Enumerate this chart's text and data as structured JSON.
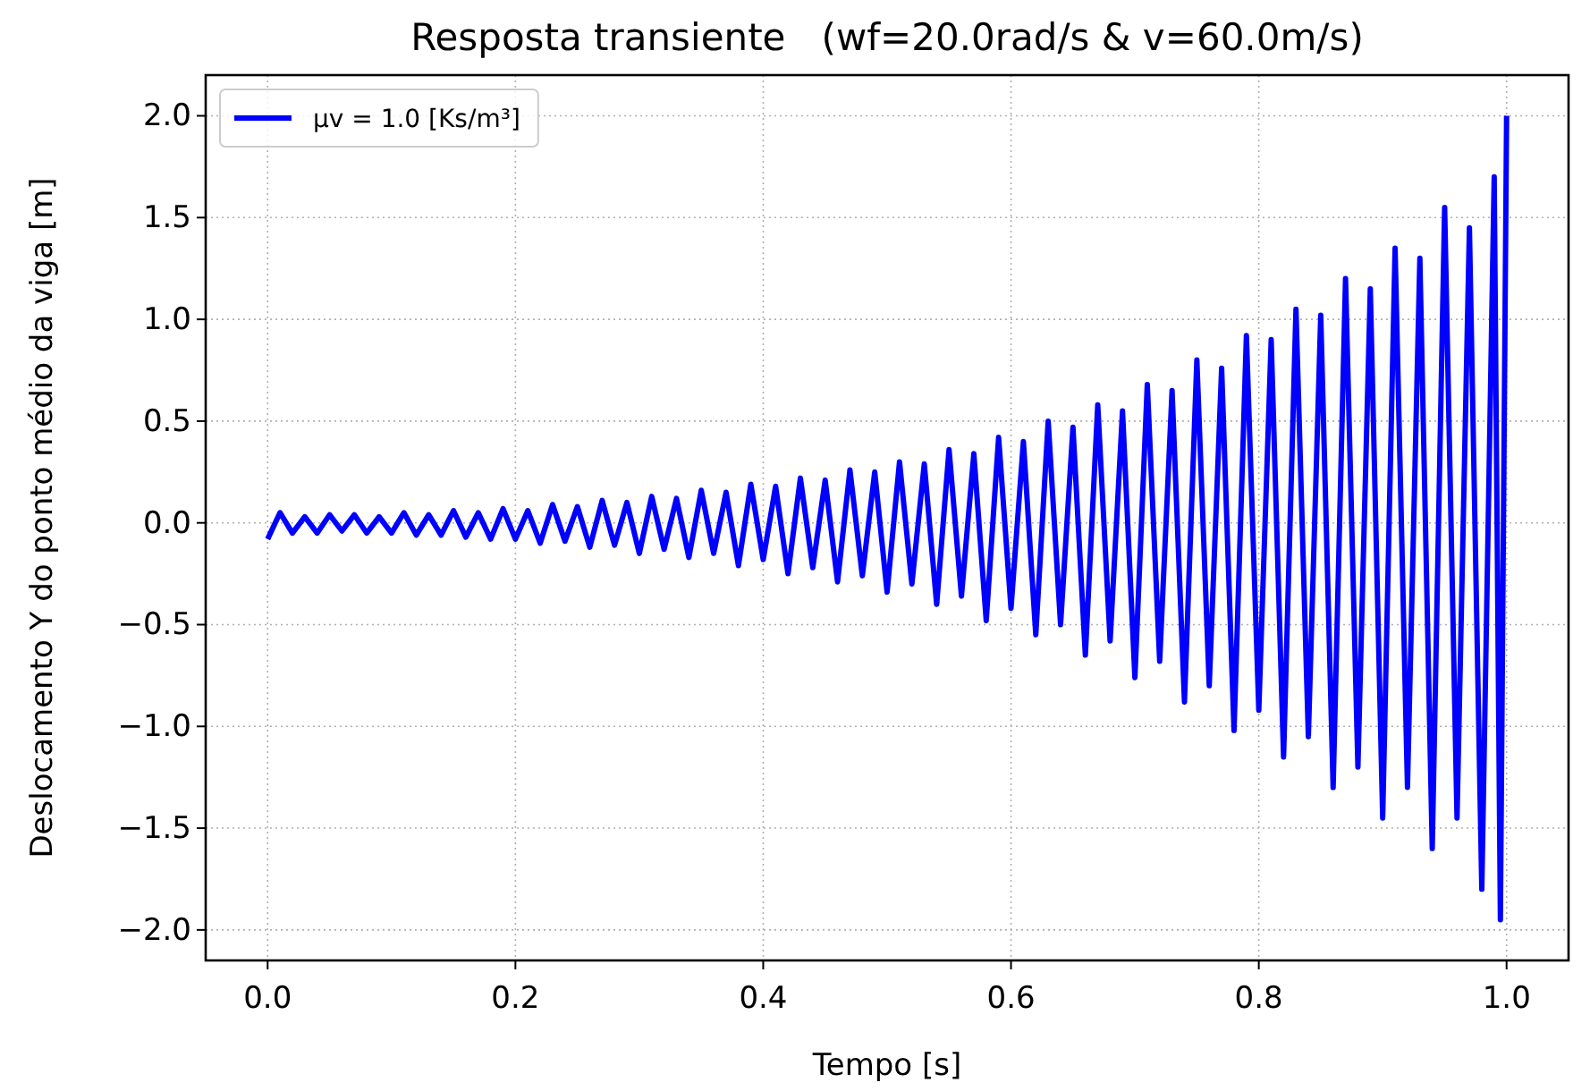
{
  "chart_data": {
    "type": "line",
    "title": "Resposta transiente   (wf=20.0rad/s & v=60.0m/s)",
    "xlabel": "Tempo [s]",
    "ylabel": "Deslocamento Y do ponto médio da viga [m]",
    "xlim": [
      -0.05,
      1.05
    ],
    "xticks": [
      {
        "value": 0,
        "label": "0.0"
      },
      0.2,
      0.4,
      0.6,
      0.8,
      {
        "value": 1,
        "label": "1.0"
      }
    ],
    "ylim": [
      -2.15,
      2.2
    ],
    "yticks": [
      {
        "value": -2,
        "label": "−2.0"
      },
      {
        "value": -1.5,
        "label": "−1.5"
      },
      {
        "value": -1,
        "label": "−1.0"
      },
      {
        "value": -0.5,
        "label": "−0.5"
      },
      {
        "value": 0,
        "label": "0.0"
      },
      0.5,
      {
        "value": 1,
        "label": "1.0"
      },
      1.5,
      {
        "value": 2,
        "label": "2.0"
      }
    ],
    "grid": true,
    "legend": "top left",
    "marker": "none",
    "line_style": "solid",
    "series": [
      {
        "name": "μv = 1.0 [Ks/m³]",
        "color": "#0000ff",
        "x": [
          0,
          0.01,
          0.02,
          0.03,
          0.04,
          0.05,
          0.06,
          0.07,
          0.08,
          0.09,
          0.1,
          0.11,
          0.12,
          0.13,
          0.14,
          0.15,
          0.16,
          0.17,
          0.18,
          0.19,
          0.2,
          0.21,
          0.22,
          0.23,
          0.24,
          0.25,
          0.26,
          0.27,
          0.28,
          0.29,
          0.3,
          0.31,
          0.32,
          0.33,
          0.34,
          0.35,
          0.36,
          0.37,
          0.38,
          0.39,
          0.4,
          0.41,
          0.42,
          0.43,
          0.44,
          0.45,
          0.46,
          0.47,
          0.48,
          0.49,
          0.5,
          0.51,
          0.52,
          0.53,
          0.54,
          0.55,
          0.56,
          0.57,
          0.58,
          0.59,
          0.6,
          0.61,
          0.62,
          0.63,
          0.64,
          0.65,
          0.66,
          0.67,
          0.68,
          0.69,
          0.7,
          0.71,
          0.72,
          0.73,
          0.74,
          0.75,
          0.76,
          0.77,
          0.78,
          0.79,
          0.8,
          0.81,
          0.82,
          0.83,
          0.84,
          0.85,
          0.86,
          0.87,
          0.88,
          0.89,
          0.9,
          0.91,
          0.92,
          0.93,
          0.94,
          0.95,
          0.96,
          0.97,
          0.98,
          0.99,
          0.995,
          1.0
        ],
        "values": [
          -0.08,
          0.05,
          -0.05,
          0.03,
          -0.05,
          0.04,
          -0.04,
          0.04,
          -0.05,
          0.03,
          -0.05,
          0.05,
          -0.06,
          0.04,
          -0.06,
          0.06,
          -0.07,
          0.05,
          -0.08,
          0.07,
          -0.08,
          0.06,
          -0.1,
          0.09,
          -0.09,
          0.08,
          -0.12,
          0.11,
          -0.11,
          0.1,
          -0.15,
          0.13,
          -0.13,
          0.12,
          -0.17,
          0.16,
          -0.15,
          0.15,
          -0.21,
          0.19,
          -0.18,
          0.18,
          -0.25,
          0.22,
          -0.22,
          0.21,
          -0.29,
          0.26,
          -0.26,
          0.25,
          -0.34,
          0.3,
          -0.3,
          0.29,
          -0.4,
          0.36,
          -0.36,
          0.34,
          -0.48,
          0.42,
          -0.42,
          0.4,
          -0.55,
          0.5,
          -0.5,
          0.47,
          -0.65,
          0.58,
          -0.58,
          0.55,
          -0.76,
          0.68,
          -0.68,
          0.65,
          -0.88,
          0.8,
          -0.8,
          0.76,
          -1.02,
          0.92,
          -0.92,
          0.9,
          -1.15,
          1.05,
          -1.05,
          1.02,
          -1.3,
          1.2,
          -1.2,
          1.15,
          -1.45,
          1.35,
          -1.3,
          1.3,
          -1.6,
          1.55,
          -1.45,
          1.45,
          -1.8,
          1.7,
          -1.95,
          2.0
        ]
      }
    ]
  }
}
